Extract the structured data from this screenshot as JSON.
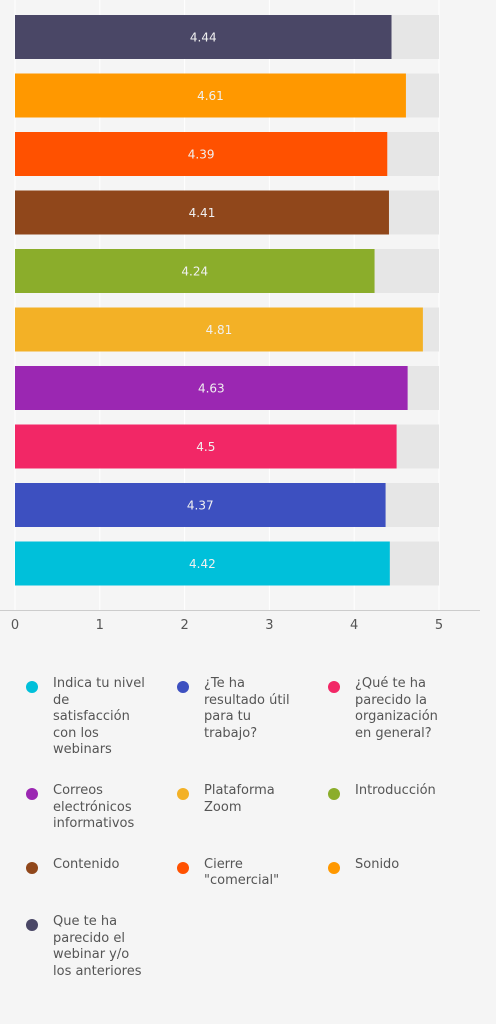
{
  "chart_data": {
    "type": "bar",
    "orientation": "horizontal",
    "xlim": [
      0,
      5
    ],
    "xticks": [
      "0",
      "1",
      "2",
      "3",
      "4",
      "5"
    ],
    "grid": true,
    "legend_position": "bottom",
    "series": [
      {
        "name": "Que te ha parecido el webinar y/o los anteriores",
        "value": 4.44,
        "label": "4.44",
        "color": "#4a4766"
      },
      {
        "name": "Sonido",
        "value": 4.61,
        "label": "4.61",
        "color": "#ff9800"
      },
      {
        "name": "Cierre \"comercial\"",
        "value": 4.39,
        "label": "4.39",
        "color": "#ff5100"
      },
      {
        "name": "Contenido",
        "value": 4.41,
        "label": "4.41",
        "color": "#90471b"
      },
      {
        "name": "Introducción",
        "value": 4.24,
        "label": "4.24",
        "color": "#8bad2b"
      },
      {
        "name": "Plataforma Zoom",
        "value": 4.81,
        "label": "4.81",
        "color": "#f3b126"
      },
      {
        "name": "Correos electrónicos informativos",
        "value": 4.63,
        "label": "4.63",
        "color": "#9b27b2"
      },
      {
        "name": "¿Qué te ha parecido la organización en general?",
        "value": 4.5,
        "label": "4.5",
        "color": "#f22766"
      },
      {
        "name": "¿Te ha resultado útil para tu trabajo?",
        "value": 4.37,
        "label": "4.37",
        "color": "#3d50c0"
      },
      {
        "name": "Indica tu nivel de satisfacción con los webinars",
        "value": 4.42,
        "label": "4.42",
        "color": "#00c0da"
      }
    ]
  },
  "legend": [
    {
      "label": "Indica tu nivel de satisfacción con los webinars",
      "color": "#00c0da"
    },
    {
      "label": "¿Te ha resultado útil para tu trabajo?",
      "color": "#3d50c0"
    },
    {
      "label": "¿Qué te ha parecido la organización en general?",
      "color": "#f22766"
    },
    {
      "label": "Correos electrónicos informativos",
      "color": "#9b27b2"
    },
    {
      "label": "Plataforma Zoom",
      "color": "#f3b126"
    },
    {
      "label": "Introducción",
      "color": "#8bad2b"
    },
    {
      "label": "Contenido",
      "color": "#90471b"
    },
    {
      "label": "Cierre \"comercial\"",
      "color": "#ff5100"
    },
    {
      "label": "Sonido",
      "color": "#ff9800"
    },
    {
      "label": "Que te ha parecido el webinar y/o los anteriores",
      "color": "#4a4766"
    }
  ]
}
